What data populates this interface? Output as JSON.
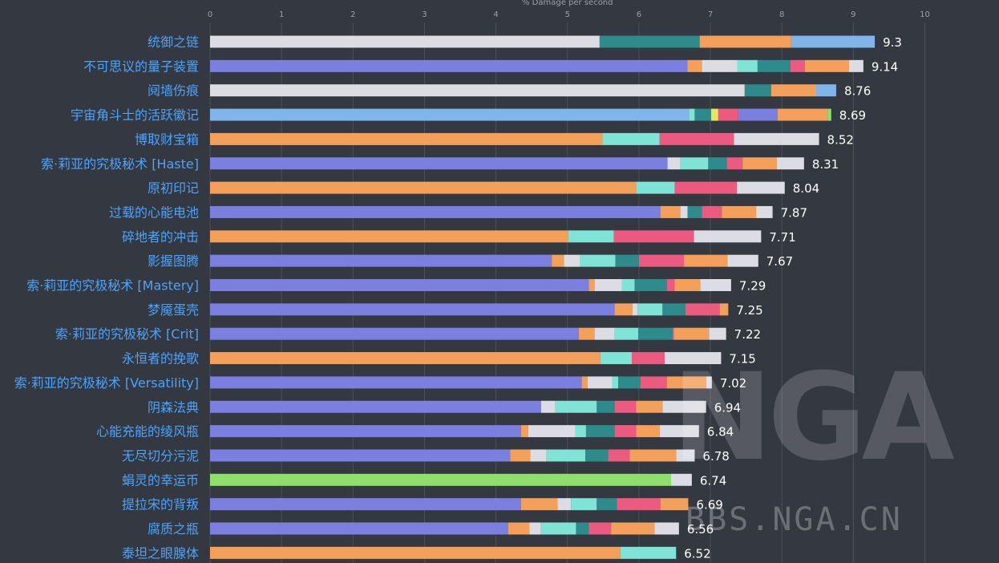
{
  "chart_data": {
    "type": "bar",
    "orientation": "horizontal",
    "stacked": true,
    "xlabel": "% Damage per second",
    "xlim": [
      0,
      10
    ],
    "xticks": [
      "0",
      "1",
      "2",
      "3",
      "4",
      "5",
      "6",
      "7",
      "8",
      "9",
      "10"
    ],
    "grid": true,
    "colors": {
      "purple": "#7b80e0",
      "white": "#dcdce4",
      "teal": "#2e8b8b",
      "orange": "#f5a05a",
      "blue": "#7fb5ea",
      "mint": "#7fe3d6",
      "pink": "#ec5a80",
      "yellow": "#e6e65a",
      "green": "#8fe06a"
    },
    "rows": [
      {
        "label": "统御之链",
        "total_label": "9.3",
        "segments": [
          [
            "white",
            5.45
          ],
          [
            "teal",
            1.4
          ],
          [
            "orange",
            1.28
          ],
          [
            "blue",
            1.17
          ]
        ]
      },
      {
        "label": "不可思议的量子装置",
        "total_label": "9.14",
        "segments": [
          [
            "purple",
            6.68
          ],
          [
            "orange",
            0.2
          ],
          [
            "white",
            0.5
          ],
          [
            "mint",
            0.28
          ],
          [
            "teal",
            0.46
          ],
          [
            "pink",
            0.2
          ],
          [
            "orange",
            0.62
          ],
          [
            "white",
            0.2
          ]
        ]
      },
      {
        "label": "阋墙伤痕",
        "total_label": "8.76",
        "segments": [
          [
            "white",
            7.48
          ],
          [
            "teal",
            0.37
          ],
          [
            "orange",
            0.63
          ],
          [
            "blue",
            0.28
          ]
        ]
      },
      {
        "label": "宇宙角斗士的活跃徽记",
        "total_label": "8.69",
        "segments": [
          [
            "blue",
            6.7
          ],
          [
            "mint",
            0.08
          ],
          [
            "teal",
            0.23
          ],
          [
            "yellow",
            0.1
          ],
          [
            "pink",
            0.28
          ],
          [
            "purple",
            0.55
          ],
          [
            "orange",
            0.7
          ],
          [
            "green",
            0.05
          ]
        ]
      },
      {
        "label": "博取财宝箱",
        "total_label": "8.52",
        "segments": [
          [
            "orange",
            5.49
          ],
          [
            "mint",
            0.8
          ],
          [
            "pink",
            1.04
          ],
          [
            "white",
            1.19
          ]
        ]
      },
      {
        "label": "索·莉亚的究极秘术 [Haste]",
        "total_label": "8.31",
        "segments": [
          [
            "purple",
            6.4
          ],
          [
            "white",
            0.18
          ],
          [
            "mint",
            0.39
          ],
          [
            "teal",
            0.26
          ],
          [
            "pink",
            0.22
          ],
          [
            "orange",
            0.48
          ],
          [
            "white",
            0.38
          ]
        ]
      },
      {
        "label": "原初印记",
        "total_label": "8.04",
        "segments": [
          [
            "orange",
            5.96
          ],
          [
            "mint",
            0.54
          ],
          [
            "pink",
            0.87
          ],
          [
            "white",
            0.67
          ]
        ]
      },
      {
        "label": "过载的心能电池",
        "total_label": "7.87",
        "segments": [
          [
            "purple",
            6.3
          ],
          [
            "orange",
            0.28
          ],
          [
            "white",
            0.1
          ],
          [
            "teal",
            0.2
          ],
          [
            "pink",
            0.28
          ],
          [
            "orange",
            0.48
          ],
          [
            "white",
            0.23
          ]
        ]
      },
      {
        "label": "碎地者的冲击",
        "total_label": "7.71",
        "segments": [
          [
            "orange",
            5.01
          ],
          [
            "mint",
            0.64
          ],
          [
            "pink",
            1.12
          ],
          [
            "white",
            0.94
          ]
        ]
      },
      {
        "label": "影握图腾",
        "total_label": "7.67",
        "segments": [
          [
            "purple",
            4.78
          ],
          [
            "orange",
            0.17
          ],
          [
            "white",
            0.23
          ],
          [
            "mint",
            0.49
          ],
          [
            "teal",
            0.33
          ],
          [
            "pink",
            0.63
          ],
          [
            "orange",
            0.61
          ],
          [
            "white",
            0.43
          ]
        ]
      },
      {
        "label": "索·莉亚的究极秘术 [Mastery]",
        "total_label": "7.29",
        "segments": [
          [
            "purple",
            5.3
          ],
          [
            "orange",
            0.08
          ],
          [
            "white",
            0.38
          ],
          [
            "mint",
            0.18
          ],
          [
            "teal",
            0.45
          ],
          [
            "pink",
            0.11
          ],
          [
            "orange",
            0.36
          ],
          [
            "white",
            0.43
          ]
        ]
      },
      {
        "label": "梦魇蛋壳",
        "total_label": "7.25",
        "segments": [
          [
            "purple",
            5.66
          ],
          [
            "orange",
            0.25
          ],
          [
            "white",
            0.07
          ],
          [
            "mint",
            0.35
          ],
          [
            "teal",
            0.32
          ],
          [
            "pink",
            0.48
          ],
          [
            "orange",
            0.12
          ]
        ]
      },
      {
        "label": "索·莉亚的究极秘术 [Crit]",
        "total_label": "7.22",
        "segments": [
          [
            "purple",
            5.16
          ],
          [
            "orange",
            0.22
          ],
          [
            "white",
            0.28
          ],
          [
            "mint",
            0.33
          ],
          [
            "teal",
            0.48
          ],
          [
            "pink",
            0.02
          ],
          [
            "orange",
            0.49
          ],
          [
            "white",
            0.24
          ]
        ]
      },
      {
        "label": "永恒者的挽歌",
        "total_label": "7.15",
        "segments": [
          [
            "orange",
            5.46
          ],
          [
            "mint",
            0.44
          ],
          [
            "pink",
            0.46
          ],
          [
            "white",
            0.79
          ]
        ]
      },
      {
        "label": "索·莉亚的究极秘术 [Versatility]",
        "total_label": "7.02",
        "segments": [
          [
            "purple",
            5.2
          ],
          [
            "orange",
            0.08
          ],
          [
            "white",
            0.35
          ],
          [
            "mint",
            0.08
          ],
          [
            "teal",
            0.31
          ],
          [
            "pink",
            0.37
          ],
          [
            "orange",
            0.55
          ],
          [
            "white",
            0.08
          ]
        ]
      },
      {
        "label": "阴森法典",
        "total_label": "6.94",
        "segments": [
          [
            "purple",
            4.63
          ],
          [
            "white",
            0.2
          ],
          [
            "mint",
            0.58
          ],
          [
            "teal",
            0.25
          ],
          [
            "pink",
            0.3
          ],
          [
            "orange",
            0.37
          ],
          [
            "white",
            0.61
          ]
        ]
      },
      {
        "label": "心能充能的绫风瓶",
        "total_label": "6.84",
        "segments": [
          [
            "purple",
            4.35
          ],
          [
            "orange",
            0.1
          ],
          [
            "white",
            0.66
          ],
          [
            "mint",
            0.15
          ],
          [
            "teal",
            0.4
          ],
          [
            "pink",
            0.3
          ],
          [
            "orange",
            0.33
          ],
          [
            "white",
            0.55
          ]
        ]
      },
      {
        "label": "无尽切分污泥",
        "total_label": "6.78",
        "segments": [
          [
            "purple",
            4.2
          ],
          [
            "orange",
            0.28
          ],
          [
            "white",
            0.22
          ],
          [
            "mint",
            0.55
          ],
          [
            "teal",
            0.32
          ],
          [
            "pink",
            0.3
          ],
          [
            "orange",
            0.65
          ],
          [
            "white",
            0.26
          ]
        ]
      },
      {
        "label": "蜎灵的幸运币",
        "total_label": "6.74",
        "segments": [
          [
            "green",
            6.45
          ],
          [
            "white",
            0.29
          ]
        ]
      },
      {
        "label": "提拉宋的背叛",
        "total_label": "6.69",
        "segments": [
          [
            "purple",
            4.35
          ],
          [
            "orange",
            0.51
          ],
          [
            "white",
            0.19
          ],
          [
            "mint",
            0.36
          ],
          [
            "teal",
            0.28
          ],
          [
            "pink",
            0.61
          ],
          [
            "orange",
            0.39
          ]
        ]
      },
      {
        "label": "腐质之瓶",
        "total_label": "6.56",
        "segments": [
          [
            "purple",
            4.17
          ],
          [
            "orange",
            0.3
          ],
          [
            "white",
            0.16
          ],
          [
            "mint",
            0.49
          ],
          [
            "teal",
            0.18
          ],
          [
            "pink",
            0.31
          ],
          [
            "orange",
            0.61
          ],
          [
            "white",
            0.34
          ]
        ]
      },
      {
        "label": "泰坦之眼腺体",
        "total_label": "6.52",
        "segments": [
          [
            "orange",
            5.74
          ],
          [
            "mint",
            0.78
          ]
        ]
      }
    ]
  },
  "watermark": {
    "logo_text": "NGA",
    "site_text": "BBS.NGA.CN"
  }
}
